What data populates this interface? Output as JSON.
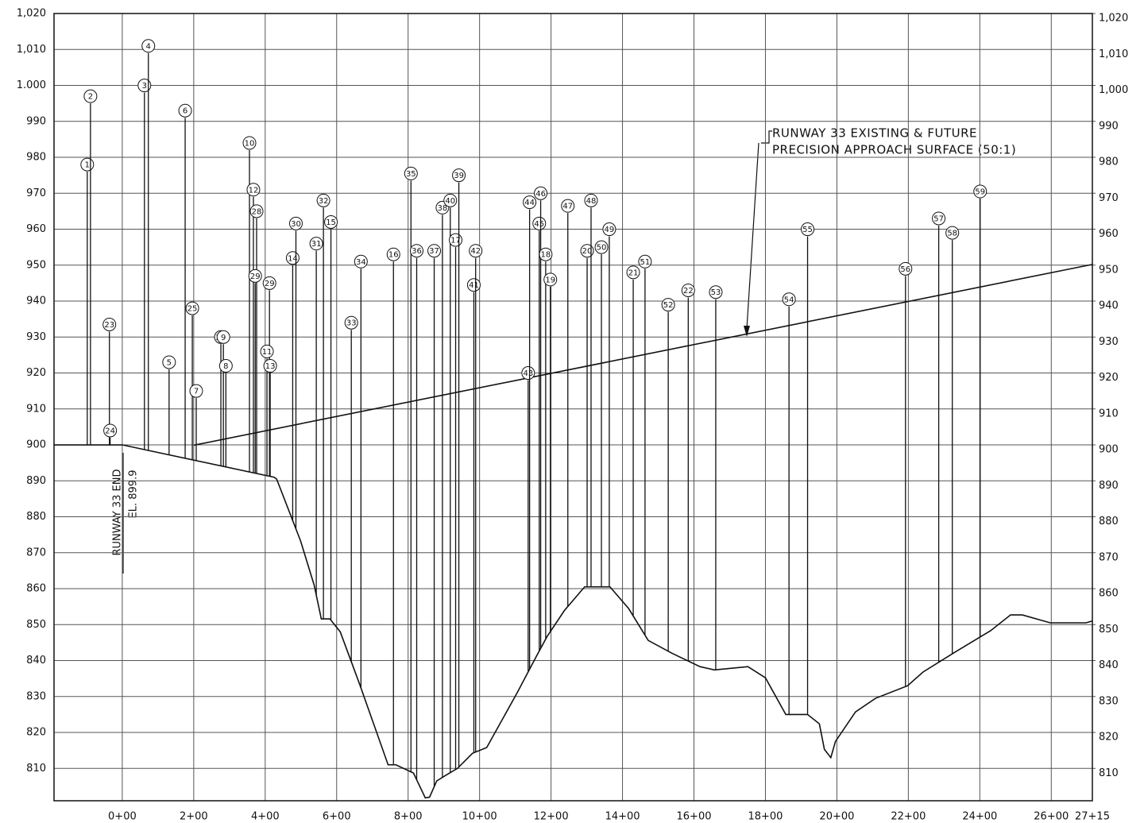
{
  "chart_data": {
    "type": "profile",
    "xlim": [
      -191,
      2715
    ],
    "ylim": [
      801,
      1020
    ],
    "y2lim": [
      801,
      1020
    ],
    "xticks": [
      {
        "value": 0,
        "label": "0+00"
      },
      {
        "value": 200,
        "label": "2+00"
      },
      {
        "value": 400,
        "label": "4+00"
      },
      {
        "value": 600,
        "label": "6+00"
      },
      {
        "value": 800,
        "label": "8+00"
      },
      {
        "value": 1000,
        "label": "10+00"
      },
      {
        "value": 1200,
        "label": "12+00"
      },
      {
        "value": 1400,
        "label": "14+00"
      },
      {
        "value": 1600,
        "label": "16+00"
      },
      {
        "value": 1800,
        "label": "18+00"
      },
      {
        "value": 2000,
        "label": "20+00"
      },
      {
        "value": 2200,
        "label": "22+00"
      },
      {
        "value": 2400,
        "label": "24+00"
      },
      {
        "value": 2600,
        "label": "26+00"
      },
      {
        "value": 2715,
        "label": "27+15"
      }
    ],
    "yticks": [
      810,
      820,
      830,
      840,
      850,
      860,
      870,
      880,
      890,
      900,
      910,
      920,
      930,
      940,
      950,
      960,
      970,
      980,
      990,
      {
        "value": 1000,
        "label": "1.000"
      },
      {
        "value": 1010,
        "label": "1,010"
      },
      {
        "value": 1020,
        "label": "1,020"
      }
    ],
    "y2ticks": [
      810,
      820,
      830,
      840,
      850,
      860,
      870,
      880,
      890,
      900,
      910,
      920,
      930,
      940,
      950,
      960,
      970,
      980,
      990,
      {
        "value": 1000,
        "label": "1,000"
      },
      {
        "value": 1010,
        "label": "1,010"
      },
      {
        "value": 1020,
        "label": "1,020"
      }
    ],
    "grid": true,
    "color": "#111111",
    "profile": {
      "station": [
        -191,
        0,
        425,
        432,
        499,
        537,
        557,
        581,
        610,
        664,
        744,
        766,
        815,
        848,
        860,
        880,
        904,
        938,
        980,
        1020,
        1105,
        1158,
        1189,
        1238,
        1294,
        1365,
        1417,
        1472,
        1539,
        1617,
        1657,
        1751,
        1800,
        1857,
        1918,
        1951,
        1965,
        1983,
        1996,
        2052,
        2108,
        2198,
        2241,
        2330,
        2430,
        2486,
        2519,
        2597,
        2697,
        2715
      ],
      "elevation": [
        900,
        900,
        891,
        890.5,
        873.3,
        861,
        851.6,
        851.6,
        848,
        833.5,
        811,
        811,
        808.7,
        801.8,
        802,
        806.5,
        808,
        810,
        814.2,
        815.8,
        831,
        841,
        846.7,
        854,
        860.5,
        860.5,
        854.5,
        845.6,
        842,
        838.3,
        837.4,
        838.3,
        835.2,
        825,
        825,
        822.4,
        815.3,
        813,
        817.5,
        825.7,
        829.5,
        833,
        836.8,
        842.3,
        848.3,
        852.7,
        852.7,
        850.5,
        850.5,
        851
      ]
    },
    "approach_surface": {
      "station": [
        200,
        2715
      ],
      "elevation": [
        899.9,
        950.2
      ]
    },
    "annotation": [
      "RUNWAY 33 EXISTING & FUTURE",
      "PRECISION APPROACH SURFACE (50:1)"
    ],
    "runway_label": [
      "RUNWAY 33 END",
      "EL. 899.9"
    ],
    "obstacles": [
      {
        "label": "1",
        "station": -98,
        "elevation": 976
      },
      {
        "label": "2",
        "station": -89,
        "elevation": 995
      },
      {
        "label": "23",
        "station": -36,
        "elevation": 931.5
      },
      {
        "label": "24",
        "station": -34,
        "elevation": 902
      },
      {
        "label": "3",
        "station": 62,
        "elevation": 998
      },
      {
        "label": "4",
        "station": 73,
        "elevation": 1009
      },
      {
        "label": "5",
        "station": 131,
        "elevation": 921
      },
      {
        "label": "6",
        "station": 176,
        "elevation": 991
      },
      {
        "label": "25",
        "station": 196,
        "elevation": 936
      },
      {
        "label": "7",
        "station": 207,
        "elevation": 913
      },
      {
        "label": "26",
        "station": 276,
        "elevation": 928
      },
      {
        "label": "9",
        "station": 283,
        "elevation": 928
      },
      {
        "label": "8",
        "station": 290,
        "elevation": 920
      },
      {
        "label": "10",
        "station": 356,
        "elevation": 982
      },
      {
        "label": "12",
        "station": 367,
        "elevation": 969
      },
      {
        "label": "28",
        "station": 376,
        "elevation": 963
      },
      {
        "label": "29",
        "station": 372,
        "elevation": 945
      },
      {
        "label": "29",
        "station": 412,
        "elevation": 943
      },
      {
        "label": "11",
        "station": 405,
        "elevation": 924
      },
      {
        "label": "13",
        "station": 414,
        "elevation": 920
      },
      {
        "label": "14",
        "station": 477,
        "elevation": 950
      },
      {
        "label": "30",
        "station": 486,
        "elevation": 959.6
      },
      {
        "label": "31",
        "station": 543,
        "elevation": 954
      },
      {
        "label": "32",
        "station": 563,
        "elevation": 966
      },
      {
        "label": "15",
        "station": 584,
        "elevation": 960
      },
      {
        "label": "33",
        "station": 641,
        "elevation": 932
      },
      {
        "label": "34",
        "station": 668,
        "elevation": 949
      },
      {
        "label": "16",
        "station": 759,
        "elevation": 951
      },
      {
        "label": "35",
        "station": 808,
        "elevation": 973.5
      },
      {
        "label": "36",
        "station": 824,
        "elevation": 952
      },
      {
        "label": "37",
        "station": 873,
        "elevation": 952
      },
      {
        "label": "38",
        "station": 896,
        "elevation": 964
      },
      {
        "label": "40",
        "station": 918,
        "elevation": 966
      },
      {
        "label": "17",
        "station": 933,
        "elevation": 955
      },
      {
        "label": "39",
        "station": 942,
        "elevation": 973
      },
      {
        "label": "41",
        "station": 984,
        "elevation": 942.5
      },
      {
        "label": "42",
        "station": 989,
        "elevation": 952
      },
      {
        "label": "43",
        "station": 1136,
        "elevation": 918
      },
      {
        "label": "44",
        "station": 1140,
        "elevation": 965.5
      },
      {
        "label": "45",
        "station": 1167,
        "elevation": 959.6
      },
      {
        "label": "46",
        "station": 1171,
        "elevation": 968
      },
      {
        "label": "18",
        "station": 1185,
        "elevation": 951
      },
      {
        "label": "19",
        "station": 1198,
        "elevation": 944
      },
      {
        "label": "47",
        "station": 1247,
        "elevation": 964.5
      },
      {
        "label": "20",
        "station": 1301,
        "elevation": 952
      },
      {
        "label": "48",
        "station": 1312,
        "elevation": 966
      },
      {
        "label": "50",
        "station": 1341,
        "elevation": 953
      },
      {
        "label": "49",
        "station": 1363,
        "elevation": 958
      },
      {
        "label": "21",
        "station": 1430,
        "elevation": 946
      },
      {
        "label": "51",
        "station": 1463,
        "elevation": 949
      },
      {
        "label": "52",
        "station": 1528,
        "elevation": 937
      },
      {
        "label": "22",
        "station": 1584,
        "elevation": 941
      },
      {
        "label": "53",
        "station": 1661,
        "elevation": 940.5
      },
      {
        "label": "54",
        "station": 1866,
        "elevation": 938.5
      },
      {
        "label": "55",
        "station": 1918,
        "elevation": 958
      },
      {
        "label": "56",
        "station": 2192,
        "elevation": 947
      },
      {
        "label": "57",
        "station": 2285,
        "elevation": 961
      },
      {
        "label": "58",
        "station": 2323,
        "elevation": 957
      },
      {
        "label": "59",
        "station": 2401,
        "elevation": 968.5
      }
    ]
  }
}
